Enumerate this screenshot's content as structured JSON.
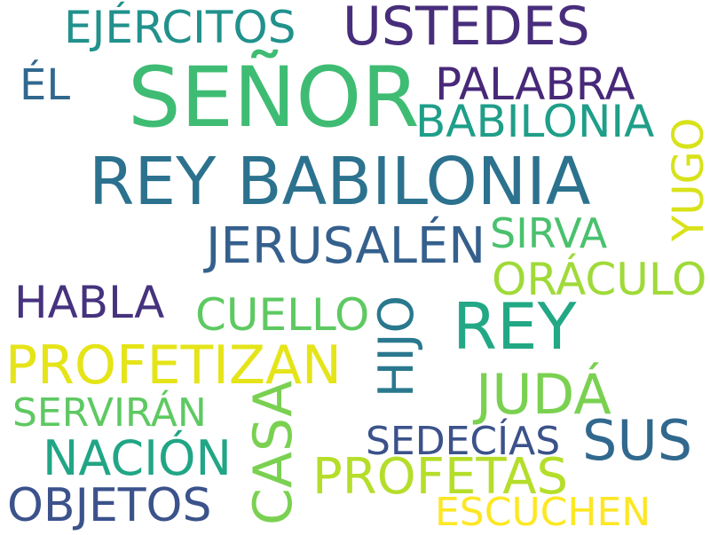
{
  "words": [
    {
      "text": "EJÉRCITOS",
      "color": "#21918c",
      "vertical": false
    },
    {
      "text": "USTEDES",
      "color": "#472d7b",
      "vertical": false
    },
    {
      "text": "ÉL",
      "color": "#31688e",
      "vertical": false
    },
    {
      "text": "SEÑOR",
      "color": "#3fbc73",
      "vertical": false
    },
    {
      "text": "PALABRA",
      "color": "#482878",
      "vertical": false
    },
    {
      "text": "BABILONIA",
      "color": "#1f9e89",
      "vertical": false
    },
    {
      "text": "REY BABILONIA",
      "color": "#2c728e",
      "vertical": false
    },
    {
      "text": "YUGO",
      "color": "#d8e219",
      "vertical": true
    },
    {
      "text": "JERUSALÉN",
      "color": "#35608d",
      "vertical": false
    },
    {
      "text": "SIRVA",
      "color": "#4ac16d",
      "vertical": false
    },
    {
      "text": "HABLA",
      "color": "#46327e",
      "vertical": false
    },
    {
      "text": "CUELLO",
      "color": "#5ec962",
      "vertical": false
    },
    {
      "text": "HIJO",
      "color": "#2a788e",
      "vertical": true
    },
    {
      "text": "ORÁCULO",
      "color": "#a0da39",
      "vertical": false
    },
    {
      "text": "REY",
      "color": "#22a884",
      "vertical": false
    },
    {
      "text": "PROFETIZAN",
      "color": "#e5e419",
      "vertical": false
    },
    {
      "text": "JUDÁ",
      "color": "#7ad151",
      "vertical": false
    },
    {
      "text": "SERVIRÁN",
      "color": "#5ec962",
      "vertical": false
    },
    {
      "text": "CASA",
      "color": "#7ad151",
      "vertical": true
    },
    {
      "text": "SUS",
      "color": "#31688e",
      "vertical": false
    },
    {
      "text": "SEDECÍAS",
      "color": "#3b528b",
      "vertical": false
    },
    {
      "text": "NACIÓN",
      "color": "#21a685",
      "vertical": false
    },
    {
      "text": "PROFETAS",
      "color": "#b5de2b",
      "vertical": false
    },
    {
      "text": "OBJETOS",
      "color": "#3b528b",
      "vertical": false
    },
    {
      "text": "ESCUCHEN",
      "color": "#fde725",
      "vertical": false
    }
  ]
}
